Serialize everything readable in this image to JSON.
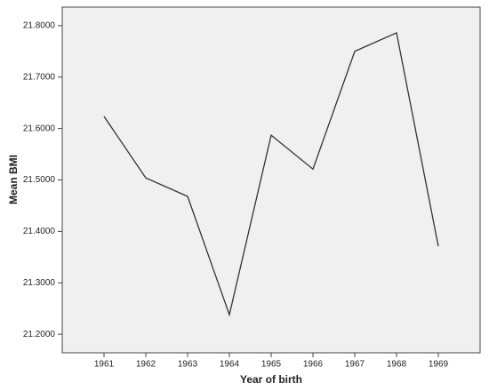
{
  "chart_data": {
    "type": "line",
    "x_label": "Year of birth",
    "y_label": "Mean BMI",
    "x": [
      1961,
      1962,
      1963,
      1964,
      1965,
      1966,
      1967,
      1968,
      1969
    ],
    "series": [
      {
        "color": "#333333",
        "values": [
          21.6235,
          21.504,
          21.468,
          21.238,
          21.587,
          21.521,
          21.75,
          21.786,
          21.371
        ]
      }
    ],
    "xlim": [
      1960,
      1970
    ],
    "xticks": [
      1961,
      1962,
      1963,
      1964,
      1965,
      1966,
      1967,
      1968,
      1969
    ],
    "ylim": [
      21.164,
      21.836
    ],
    "yticks": [
      {
        "value": 21.2,
        "label": "21.2000"
      },
      {
        "value": 21.3,
        "label": "21.3000"
      },
      {
        "value": 21.4,
        "label": "21.4000"
      },
      {
        "value": 21.5,
        "label": "21.5000"
      },
      {
        "value": 21.6,
        "label": "21.6000"
      },
      {
        "value": 21.7,
        "label": "21.7000"
      },
      {
        "value": 21.8,
        "label": "21.8000"
      }
    ],
    "background": "#f0f0f0"
  }
}
